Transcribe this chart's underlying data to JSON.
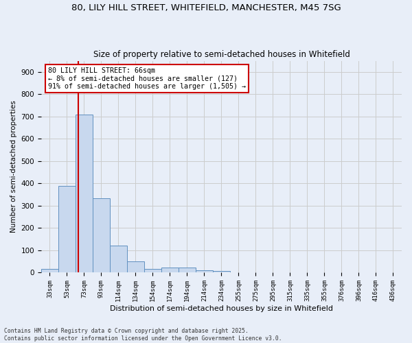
{
  "title1": "80, LILY HILL STREET, WHITEFIELD, MANCHESTER, M45 7SG",
  "title2": "Size of property relative to semi-detached houses in Whitefield",
  "xlabel": "Distribution of semi-detached houses by size in Whitefield",
  "ylabel": "Number of semi-detached properties",
  "footer": "Contains HM Land Registry data © Crown copyright and database right 2025.\nContains public sector information licensed under the Open Government Licence v3.0.",
  "bins": [
    "33sqm",
    "53sqm",
    "73sqm",
    "93sqm",
    "114sqm",
    "134sqm",
    "154sqm",
    "174sqm",
    "194sqm",
    "214sqm",
    "234sqm",
    "255sqm",
    "275sqm",
    "295sqm",
    "315sqm",
    "335sqm",
    "355sqm",
    "376sqm",
    "396sqm",
    "416sqm",
    "436sqm"
  ],
  "values": [
    18,
    390,
    710,
    335,
    120,
    50,
    18,
    22,
    22,
    12,
    7,
    0,
    0,
    0,
    0,
    0,
    0,
    0,
    0,
    0,
    0
  ],
  "bar_color": "#c8d8ee",
  "bar_edge_color": "#6090c0",
  "red_line_x": 1.65,
  "property_label": "80 LILY HILL STREET: 66sqm",
  "annotation_line1": "← 8% of semi-detached houses are smaller (127)",
  "annotation_line2": "91% of semi-detached houses are larger (1,505) →",
  "annotation_box_color": "#ffffff",
  "annotation_box_edge": "#cc0000",
  "red_line_color": "#cc0000",
  "grid_color": "#cccccc",
  "background_color": "#e8eef8",
  "ylim": [
    0,
    950
  ],
  "yticks": [
    0,
    100,
    200,
    300,
    400,
    500,
    600,
    700,
    800,
    900
  ]
}
